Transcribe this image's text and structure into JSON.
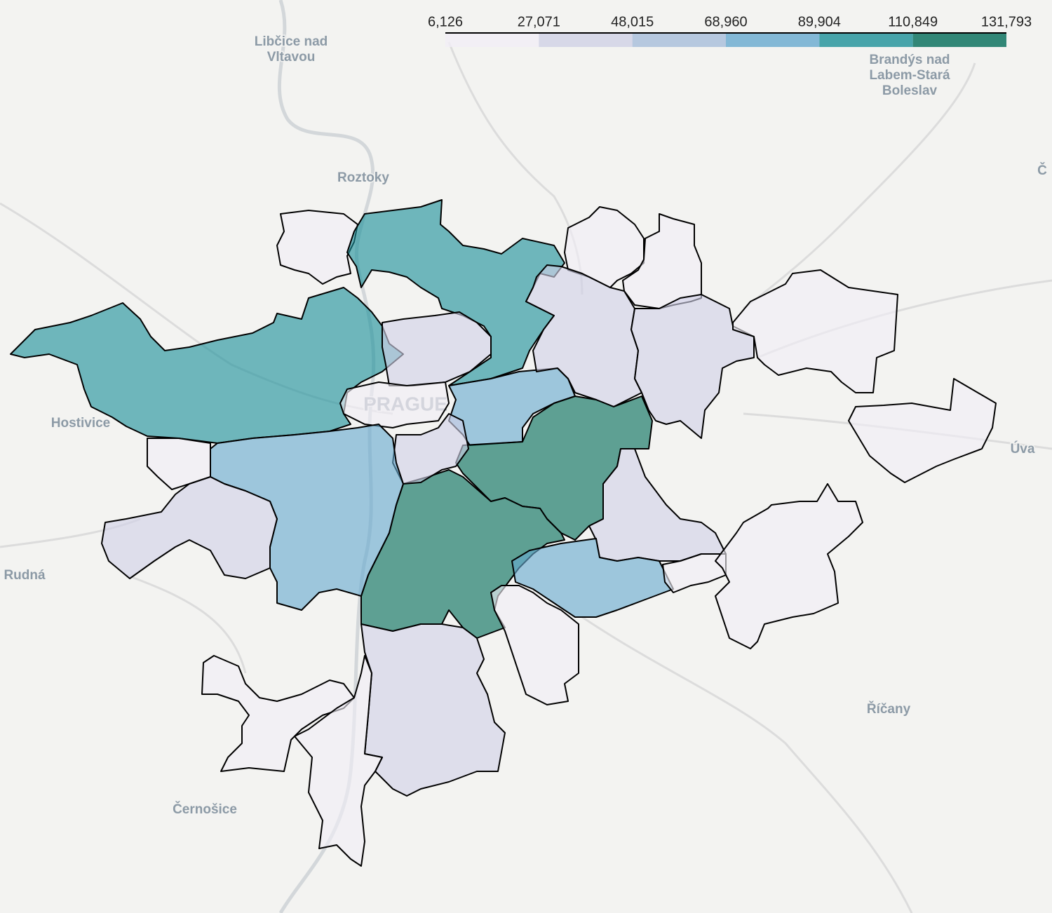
{
  "chart_data": {
    "type": "choropleth",
    "colorbar": {
      "range": [
        6126,
        131793
      ],
      "ticks": [
        {
          "value": 6126,
          "label": "6,126"
        },
        {
          "value": 27071,
          "label": "27,071"
        },
        {
          "value": 48015,
          "label": "48,015"
        },
        {
          "value": 68960,
          "label": "68,960"
        },
        {
          "value": 89904,
          "label": "89,904"
        },
        {
          "value": 110849,
          "label": "110,849"
        },
        {
          "value": 131793,
          "label": "131,793"
        }
      ],
      "colors": [
        "#f1eef6",
        "#d0d1e6",
        "#a6bddb",
        "#67a9cf",
        "#1c9099",
        "#016c59"
      ]
    },
    "values": [
      15000,
      100000,
      100000,
      30000,
      20000,
      75000,
      12000,
      12000,
      45000,
      32000,
      12000,
      12000,
      120000,
      125000,
      40000,
      75000,
      15000,
      45000,
      30000,
      75000,
      12000,
      12000,
      12000,
      45000,
      12000,
      12000
    ],
    "annotations": [
      "Libčice nad",
      "Vltavou",
      "Brandýs nad",
      "Labem-Stará",
      "Boleslav",
      "Roztoky",
      "Hostivice",
      "Rudná",
      "Černošice",
      "Říčany",
      "PRAGUE",
      "Úva",
      "Č"
    ]
  }
}
